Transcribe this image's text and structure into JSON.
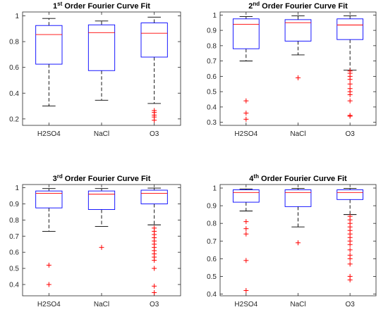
{
  "chart_data": [
    {
      "type": "boxplot",
      "title": {
        "order": "1",
        "suffix": "st",
        "text": " Order Fourier Curve Fit"
      },
      "categories": [
        "H2SO4",
        "NaCl",
        "O3"
      ],
      "ylim": [
        0.15,
        1.03
      ],
      "yticks": [
        0.2,
        0.4,
        0.6,
        0.8,
        1
      ],
      "yticklabels": [
        "0.2",
        "0.4",
        "0.6",
        "0.8",
        "1"
      ],
      "boxes": [
        {
          "min": 0.3,
          "q1": 0.625,
          "median": 0.855,
          "q3": 0.925,
          "max": 0.98,
          "outliers": []
        },
        {
          "min": 0.345,
          "q1": 0.575,
          "median": 0.87,
          "q3": 0.93,
          "max": 0.96,
          "outliers": []
        },
        {
          "min": 0.32,
          "q1": 0.68,
          "median": 0.865,
          "q3": 0.945,
          "max": 0.99,
          "outliers": [
            0.19,
            0.215,
            0.23,
            0.25,
            0.265
          ]
        }
      ]
    },
    {
      "type": "boxplot",
      "title": {
        "order": "2",
        "suffix": "nd",
        "text": " Order Fourier Curve Fit"
      },
      "categories": [
        "H2SO4",
        "NaCl",
        "O3"
      ],
      "ylim": [
        0.28,
        1.02
      ],
      "yticks": [
        0.3,
        0.4,
        0.5,
        0.6,
        0.7,
        0.8,
        0.9,
        1
      ],
      "yticklabels": [
        "0.3",
        "0.4",
        "0.5",
        "0.6",
        "0.7",
        "0.8",
        "0.9",
        "1"
      ],
      "boxes": [
        {
          "min": 0.7,
          "q1": 0.78,
          "median": 0.94,
          "q3": 0.975,
          "max": 0.99,
          "outliers": [
            0.32,
            0.36,
            0.44
          ]
        },
        {
          "min": 0.74,
          "q1": 0.83,
          "median": 0.95,
          "q3": 0.97,
          "max": 0.995,
          "outliers": [
            0.59
          ]
        },
        {
          "min": 0.64,
          "q1": 0.84,
          "median": 0.935,
          "q3": 0.975,
          "max": 0.995,
          "outliers": [
            0.34,
            0.345,
            0.44,
            0.48,
            0.5,
            0.52,
            0.55,
            0.58,
            0.6,
            0.62,
            0.635
          ]
        }
      ]
    },
    {
      "type": "boxplot",
      "title": {
        "order": "3",
        "suffix": "rd",
        "text": " Order Fourier Curve Fit"
      },
      "categories": [
        "H2SO4",
        "NaCl",
        "O3"
      ],
      "ylim": [
        0.33,
        1.02
      ],
      "yticks": [
        0.4,
        0.5,
        0.6,
        0.7,
        0.8,
        0.9,
        1
      ],
      "yticklabels": [
        "0.4",
        "0.5",
        "0.6",
        "0.7",
        "0.8",
        "0.9",
        "1"
      ],
      "boxes": [
        {
          "min": 0.73,
          "q1": 0.875,
          "median": 0.965,
          "q3": 0.98,
          "max": 0.995,
          "outliers": [
            0.4,
            0.52
          ]
        },
        {
          "min": 0.76,
          "q1": 0.865,
          "median": 0.96,
          "q3": 0.98,
          "max": 0.995,
          "outliers": [
            0.63
          ]
        },
        {
          "min": 0.77,
          "q1": 0.9,
          "median": 0.965,
          "q3": 0.985,
          "max": 0.998,
          "outliers": [
            0.35,
            0.39,
            0.5,
            0.55,
            0.57,
            0.59,
            0.61,
            0.63,
            0.65,
            0.67,
            0.69,
            0.71,
            0.73,
            0.75
          ]
        }
      ]
    },
    {
      "type": "boxplot",
      "title": {
        "order": "4",
        "suffix": "th",
        "text": " Order Fourier Curve Fit"
      },
      "categories": [
        "H2SO4",
        "NaCl",
        "O3"
      ],
      "ylim": [
        0.39,
        1.02
      ],
      "yticks": [
        0.4,
        0.5,
        0.6,
        0.7,
        0.8,
        0.9,
        1
      ],
      "yticklabels": [
        "0.4",
        "0.5",
        "0.6",
        "0.7",
        "0.8",
        "0.9",
        "1"
      ],
      "boxes": [
        {
          "min": 0.87,
          "q1": 0.92,
          "median": 0.975,
          "q3": 0.99,
          "max": 0.995,
          "outliers": [
            0.42,
            0.59,
            0.74,
            0.77,
            0.81
          ]
        },
        {
          "min": 0.78,
          "q1": 0.895,
          "median": 0.975,
          "q3": 0.99,
          "max": 0.998,
          "outliers": [
            0.69
          ]
        },
        {
          "min": 0.85,
          "q1": 0.935,
          "median": 0.975,
          "q3": 0.99,
          "max": 0.998,
          "outliers": [
            0.48,
            0.5,
            0.57,
            0.6,
            0.62,
            0.65,
            0.68,
            0.7,
            0.72,
            0.74,
            0.76,
            0.78,
            0.8,
            0.82,
            0.84
          ]
        }
      ]
    }
  ],
  "colors": {
    "box": "#0000ff",
    "median": "#ff0000",
    "outlier": "#ff0000",
    "whisker": "#000000",
    "axis": "#262626"
  }
}
